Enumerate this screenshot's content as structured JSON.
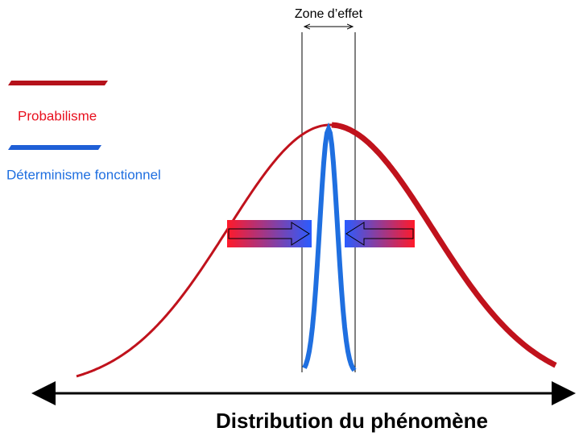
{
  "zone_label": "Zone d’effet",
  "legend": [
    {
      "label": "Probabilisme"
    },
    {
      "label": "Déterminisme fonctionnel"
    }
  ],
  "axis_label": "Distribution du phénomène"
}
